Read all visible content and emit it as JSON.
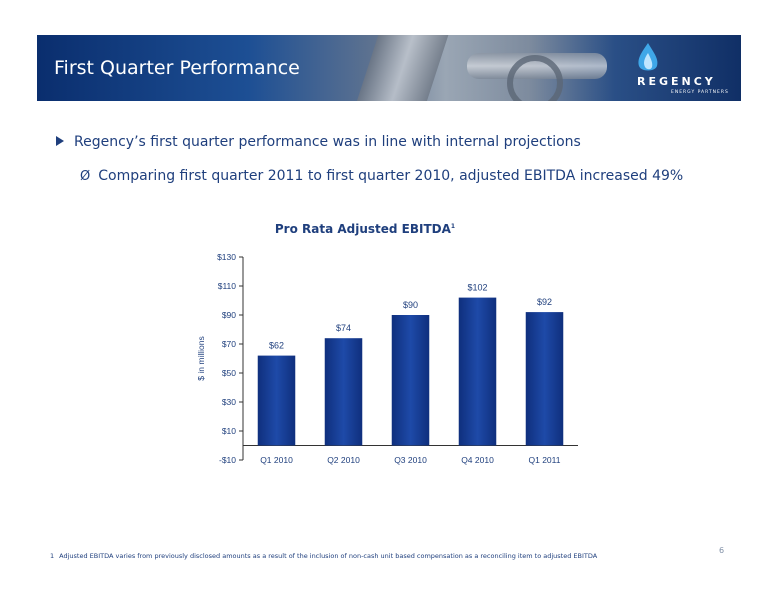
{
  "header": {
    "title": "First Quarter Performance",
    "logo_text": "REGENCY",
    "logo_subtext": "ENERGY PARTNERS"
  },
  "bullets": {
    "main": "Regency’s first quarter performance was in line with internal projections",
    "sub": "Comparing first quarter 2011 to first quarter 2010, adjusted EBITDA increased 49%",
    "sub_marker": "Ø"
  },
  "chart_data": {
    "type": "bar",
    "title": "Pro Rata Adjusted EBITDA",
    "title_superscript": "1",
    "ylabel": "$ in millions",
    "xlabel": "",
    "categories": [
      "Q1 2010",
      "Q2 2010",
      "Q3 2010",
      "Q4 2010",
      "Q1 2011"
    ],
    "values": [
      62,
      74,
      90,
      102,
      92
    ],
    "data_labels": [
      "$62",
      "$74",
      "$90",
      "$102",
      "$92"
    ],
    "ylim": [
      -10,
      130
    ],
    "yticks": [
      -10,
      10,
      30,
      50,
      70,
      90,
      110,
      130
    ],
    "ytick_labels": [
      "-$10",
      "$10",
      "$30",
      "$50",
      "$70",
      "$90",
      "$110",
      "$130"
    ],
    "bar_color": "#0f2f7d",
    "grid": false,
    "legend": "none"
  },
  "footnote": {
    "number": "1",
    "text": "Adjusted EBITDA varies from previously disclosed amounts as a result of the inclusion of non-cash unit based compensation as a reconciling item to adjusted EBITDA"
  },
  "page_number": "6",
  "colors": {
    "text_primary": "#1f3f7d",
    "banner": "#0a2e6e",
    "bar": "#0f2f7d"
  }
}
